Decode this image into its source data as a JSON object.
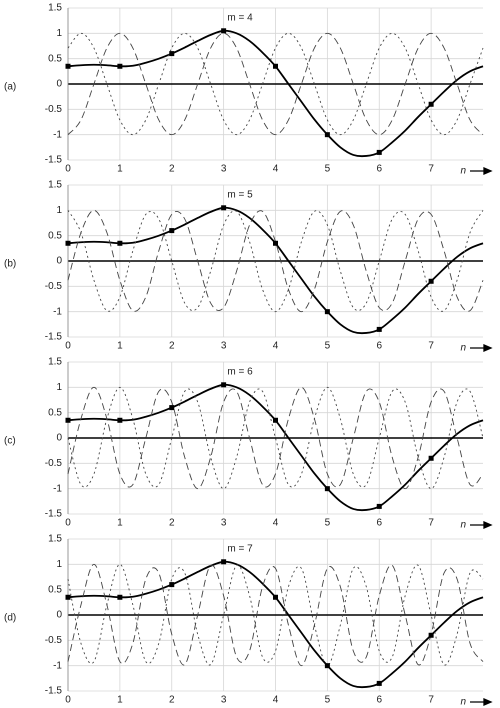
{
  "chart_data": [
    {
      "type": "line",
      "panel_label": "(a)",
      "title": "m = 4",
      "x_label": "n",
      "x": [
        0,
        0.25,
        0.5,
        0.75,
        1,
        1.25,
        1.5,
        1.75,
        2,
        2.25,
        2.5,
        2.75,
        3,
        3.25,
        3.5,
        3.75,
        4,
        4.25,
        4.5,
        4.75,
        5,
        5.25,
        5.5,
        5.75,
        6,
        6.25,
        6.5,
        6.75,
        7,
        7.25,
        7.5,
        7.75,
        8
      ],
      "xlim": [
        0,
        8
      ],
      "ylim": [
        -1.5,
        1.5
      ],
      "xticks": [
        0,
        1,
        2,
        3,
        4,
        5,
        6,
        7
      ],
      "yticks": [
        -1.5,
        -1,
        -0.5,
        0,
        0.5,
        1,
        1.5
      ],
      "grid": true,
      "series": [
        {
          "style": "solid",
          "color": "#000000",
          "values": [
            0.35,
            0.37,
            0.38,
            0.37,
            0.35,
            0.36,
            0.42,
            0.5,
            0.6,
            0.72,
            0.85,
            0.97,
            1.05,
            1.0,
            0.85,
            0.62,
            0.35,
            0.0,
            -0.35,
            -0.7,
            -1.0,
            -1.25,
            -1.4,
            -1.42,
            -1.35,
            -1.15,
            -0.92,
            -0.65,
            -0.4,
            -0.15,
            0.08,
            0.25,
            0.35
          ]
        },
        {
          "style": "dashed",
          "color": "#444444",
          "values": [
            -1,
            -0.71,
            0,
            0.71,
            1,
            0.71,
            0,
            -0.71,
            -1,
            -0.71,
            0,
            0.71,
            1,
            0.71,
            0,
            -0.71,
            -1,
            -0.71,
            0,
            0.71,
            1,
            0.71,
            0,
            -0.71,
            -1,
            -0.71,
            0,
            0.71,
            1,
            0.71,
            0,
            -0.71,
            -1
          ]
        },
        {
          "style": "dotted",
          "color": "#444444",
          "values": [
            0.71,
            1,
            0.71,
            0,
            -0.71,
            -1,
            -0.71,
            0,
            0.71,
            1,
            0.71,
            0,
            -0.71,
            -1,
            -0.71,
            0,
            0.71,
            1,
            0.71,
            0,
            -0.71,
            -1,
            -0.71,
            0,
            0.71,
            1,
            0.71,
            0,
            -0.71,
            -1,
            -0.71,
            0,
            0.71
          ]
        }
      ],
      "samples": {
        "x": [
          0,
          1,
          2,
          3,
          4,
          5,
          6,
          7
        ],
        "values": [
          0.35,
          0.35,
          0.6,
          1.05,
          0.35,
          -1.0,
          -1.35,
          -0.4
        ]
      }
    },
    {
      "type": "line",
      "panel_label": "(b)",
      "title": "m = 5",
      "x_label": "n",
      "x": [
        0,
        0.25,
        0.5,
        0.75,
        1,
        1.25,
        1.5,
        1.75,
        2,
        2.25,
        2.5,
        2.75,
        3,
        3.25,
        3.5,
        3.75,
        4,
        4.25,
        4.5,
        4.75,
        5,
        5.25,
        5.5,
        5.75,
        6,
        6.25,
        6.5,
        6.75,
        7,
        7.25,
        7.5,
        7.75,
        8
      ],
      "xlim": [
        0,
        8
      ],
      "ylim": [
        -1.5,
        1.5
      ],
      "xticks": [
        0,
        1,
        2,
        3,
        4,
        5,
        6,
        7
      ],
      "yticks": [
        -1.5,
        -1,
        -0.5,
        0,
        0.5,
        1,
        1.5
      ],
      "grid": true,
      "series": [
        {
          "style": "solid",
          "color": "#000000",
          "values": [
            0.35,
            0.37,
            0.38,
            0.37,
            0.35,
            0.36,
            0.42,
            0.5,
            0.6,
            0.72,
            0.85,
            0.97,
            1.05,
            1.0,
            0.85,
            0.62,
            0.35,
            0.0,
            -0.35,
            -0.7,
            -1.0,
            -1.25,
            -1.4,
            -1.42,
            -1.35,
            -1.15,
            -0.92,
            -0.65,
            -0.4,
            -0.15,
            0.08,
            0.25,
            0.35
          ]
        },
        {
          "style": "dashed",
          "color": "#444444",
          "values": [
            -0.38,
            0.56,
            1,
            0.56,
            -0.38,
            -0.98,
            -0.71,
            0.2,
            0.92,
            0.83,
            0,
            -0.83,
            -0.92,
            -0.2,
            0.71,
            0.98,
            0.38,
            -0.56,
            -1,
            -0.56,
            0.38,
            0.98,
            0.71,
            -0.2,
            -0.92,
            -0.83,
            0,
            0.83,
            0.92,
            0.2,
            -0.71,
            -0.98,
            -0.38
          ]
        },
        {
          "style": "dotted",
          "color": "#444444",
          "values": [
            1,
            0.56,
            -0.38,
            -0.98,
            -0.71,
            0.2,
            0.92,
            0.83,
            0,
            -0.83,
            -0.92,
            -0.2,
            0.71,
            0.98,
            0.38,
            -0.56,
            -1,
            -0.56,
            0.38,
            0.98,
            0.71,
            -0.2,
            -0.92,
            -0.83,
            0,
            0.83,
            0.92,
            0.2,
            -0.71,
            -0.98,
            -0.38,
            0.56,
            1
          ]
        }
      ],
      "samples": {
        "x": [
          0,
          1,
          2,
          3,
          4,
          5,
          6,
          7
        ],
        "values": [
          0.35,
          0.35,
          0.6,
          1.05,
          0.35,
          -1.0,
          -1.35,
          -0.4
        ]
      }
    },
    {
      "type": "line",
      "panel_label": "(c)",
      "title": "m = 6",
      "x_label": "n",
      "x": [
        0,
        0.25,
        0.5,
        0.75,
        1,
        1.25,
        1.5,
        1.75,
        2,
        2.25,
        2.5,
        2.75,
        3,
        3.25,
        3.5,
        3.75,
        4,
        4.25,
        4.5,
        4.75,
        5,
        5.25,
        5.5,
        5.75,
        6,
        6.25,
        6.5,
        6.75,
        7,
        7.25,
        7.5,
        7.75,
        8
      ],
      "xlim": [
        0,
        8
      ],
      "ylim": [
        -1.5,
        1.5
      ],
      "xticks": [
        0,
        1,
        2,
        3,
        4,
        5,
        6,
        7
      ],
      "yticks": [
        -1.5,
        -1,
        -0.5,
        0,
        0.5,
        1,
        1.5
      ],
      "grid": true,
      "series": [
        {
          "style": "solid",
          "color": "#000000",
          "values": [
            0.35,
            0.37,
            0.38,
            0.37,
            0.35,
            0.36,
            0.42,
            0.5,
            0.6,
            0.72,
            0.85,
            0.97,
            1.05,
            1.0,
            0.85,
            0.62,
            0.35,
            0.0,
            -0.35,
            -0.7,
            -1.0,
            -1.25,
            -1.4,
            -1.42,
            -1.35,
            -1.15,
            -0.92,
            -0.65,
            -0.4,
            -0.15,
            0.08,
            0.25,
            0.35
          ]
        },
        {
          "style": "dashed",
          "color": "#444444",
          "values": [
            -0.71,
            0.38,
            1,
            0.38,
            -0.71,
            -0.92,
            0,
            0.92,
            0.71,
            -0.38,
            -1,
            -0.38,
            0.71,
            0.92,
            0,
            -0.92,
            -0.71,
            0.38,
            1,
            0.38,
            -0.71,
            -0.92,
            0,
            0.92,
            0.71,
            -0.38,
            -1,
            -0.38,
            0.71,
            0.92,
            0,
            -0.92,
            -0.71
          ]
        },
        {
          "style": "dotted",
          "color": "#444444",
          "values": [
            0,
            -0.92,
            -0.71,
            0.38,
            1,
            0.38,
            -0.71,
            -0.92,
            0,
            0.92,
            0.71,
            -0.38,
            -1,
            -0.38,
            0.71,
            0.92,
            0,
            -0.92,
            -0.71,
            0.38,
            1,
            0.38,
            -0.71,
            -0.92,
            0,
            0.92,
            0.71,
            -0.38,
            -1,
            -0.38,
            0.71,
            0.92,
            0
          ]
        }
      ],
      "samples": {
        "x": [
          0,
          1,
          2,
          3,
          4,
          5,
          6,
          7
        ],
        "values": [
          0.35,
          0.35,
          0.6,
          1.05,
          0.35,
          -1.0,
          -1.35,
          -0.4
        ]
      }
    },
    {
      "type": "line",
      "panel_label": "(d)",
      "title": "m = 7",
      "x_label": "n",
      "x": [
        0,
        0.25,
        0.5,
        0.75,
        1,
        1.25,
        1.5,
        1.75,
        2,
        2.25,
        2.5,
        2.75,
        3,
        3.25,
        3.5,
        3.75,
        4,
        4.25,
        4.5,
        4.75,
        5,
        5.25,
        5.5,
        5.75,
        6,
        6.25,
        6.5,
        6.75,
        7,
        7.25,
        7.5,
        7.75,
        8
      ],
      "xlim": [
        0,
        8
      ],
      "ylim": [
        -1.5,
        1.5
      ],
      "xticks": [
        0,
        1,
        2,
        3,
        4,
        5,
        6,
        7
      ],
      "yticks": [
        -1.5,
        -1,
        -0.5,
        0,
        0.5,
        1,
        1.5
      ],
      "grid": true,
      "series": [
        {
          "style": "solid",
          "color": "#000000",
          "values": [
            0.35,
            0.37,
            0.38,
            0.37,
            0.35,
            0.36,
            0.42,
            0.5,
            0.6,
            0.72,
            0.85,
            0.97,
            1.05,
            1.0,
            0.85,
            0.62,
            0.35,
            0.0,
            -0.35,
            -0.7,
            -1.0,
            -1.25,
            -1.4,
            -1.42,
            -1.35,
            -1.15,
            -0.92,
            -0.65,
            -0.4,
            -0.15,
            0.08,
            0.25,
            0.35
          ]
        },
        {
          "style": "dashed",
          "color": "#444444",
          "values": [
            -0.92,
            0.2,
            1,
            0.2,
            -0.92,
            -0.56,
            0.71,
            0.83,
            -0.38,
            -0.98,
            0,
            0.98,
            0.38,
            -0.83,
            -0.71,
            0.56,
            0.92,
            -0.2,
            -1,
            -0.2,
            0.92,
            0.56,
            -0.71,
            -0.83,
            0.38,
            0.98,
            0,
            -0.98,
            -0.38,
            0.83,
            0.71,
            -0.56,
            -0.92
          ]
        },
        {
          "style": "dotted",
          "color": "#444444",
          "values": [
            0.71,
            -0.56,
            -0.92,
            0.2,
            1,
            0.2,
            -0.92,
            -0.56,
            0.71,
            0.83,
            -0.38,
            -0.98,
            0,
            0.98,
            0.38,
            -0.83,
            -0.71,
            0.56,
            0.92,
            -0.2,
            -1,
            -0.2,
            0.92,
            0.56,
            -0.71,
            -0.83,
            0.38,
            0.98,
            0,
            -0.98,
            -0.38,
            0.83,
            0.71
          ]
        }
      ],
      "samples": {
        "x": [
          0,
          1,
          2,
          3,
          4,
          5,
          6,
          7
        ],
        "values": [
          0.35,
          0.35,
          0.6,
          1.05,
          0.35,
          -1.0,
          -1.35,
          -0.4
        ]
      }
    }
  ]
}
